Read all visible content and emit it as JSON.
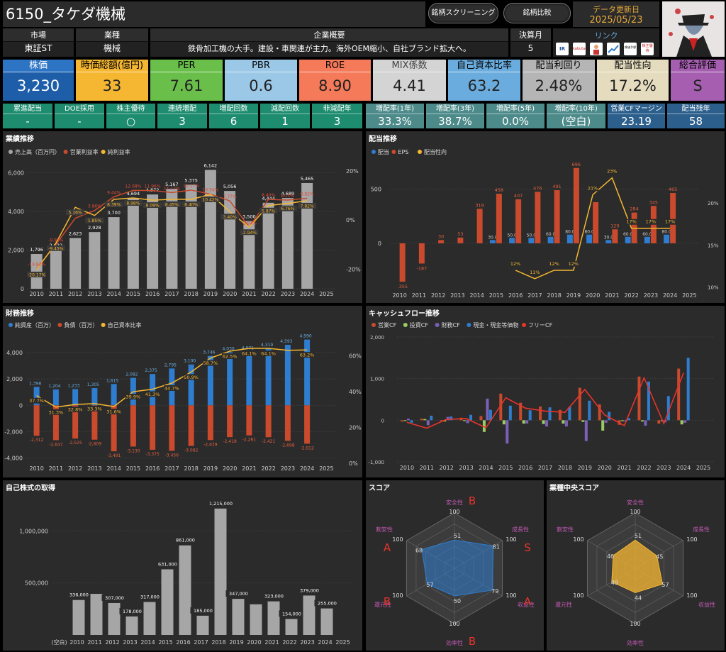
{
  "header": {
    "title": "6150_タケダ機械",
    "btn_screening": "銘柄スクリーニング",
    "btn_compare": "銘柄比較",
    "update_label": "データ更新日",
    "update_date": "2025/05/23"
  },
  "info": {
    "market_h": "市場",
    "market": "東証ST",
    "industry_h": "業種",
    "industry": "機械",
    "summary_h": "企業概要",
    "summary": "鉄骨加工機の大手。建設・車関連が主力。海外OEM縮小、自社ブランド拡大へ。",
    "fiscal_h": "決算月",
    "fiscal": "5",
    "links_h": "リンク",
    "links": [
      "IR BANK",
      "kabutan",
      "",
      "",
      "株価予想",
      "株主優待"
    ]
  },
  "kpis": [
    {
      "label": "株価",
      "value": "3,230",
      "bg": "#1e5ea8",
      "hbg": "#2d74c4",
      "fg": "#fff"
    },
    {
      "label": "時価総額(億円)",
      "value": "33",
      "bg": "#f5b731",
      "hbg": "#f5b731",
      "fg": "#000"
    },
    {
      "label": "PER",
      "value": "7.61",
      "bg": "#6abf4b",
      "hbg": "#6abf4b",
      "fg": "#000"
    },
    {
      "label": "PBR",
      "value": "0.6",
      "bg": "#9cc8e8",
      "hbg": "#9cc8e8",
      "fg": "#000"
    },
    {
      "label": "ROE",
      "value": "8.90",
      "bg": "#f47a5a",
      "hbg": "#f47a5a",
      "fg": "#000"
    },
    {
      "label": "MIX係数",
      "value": "4.41",
      "bg": "#d4d4d4",
      "hbg": "#d4d4d4",
      "fg": "#444"
    },
    {
      "label": "自己資本比率",
      "value": "63.2",
      "bg": "#6aacde",
      "hbg": "#6aacde",
      "fg": "#000"
    },
    {
      "label": "配当利回り",
      "value": "2.48%",
      "bg": "#b5b5b5",
      "hbg": "#b5b5b5",
      "fg": "#000"
    },
    {
      "label": "配当性向",
      "value": "17.2%",
      "bg": "#e5dcbf",
      "hbg": "#e5dcbf",
      "fg": "#000"
    },
    {
      "label": "総合評価",
      "value": "S",
      "bg": "#a65fb0",
      "hbg": "#a65fb0",
      "fg": "#000"
    }
  ],
  "minis": [
    {
      "label": "累進配当",
      "value": "-",
      "bg": "#1e8c6f"
    },
    {
      "label": "DOE採用",
      "value": "-",
      "bg": "#1e8c6f"
    },
    {
      "label": "株主優待",
      "value": "○",
      "bg": "#1e8c6f"
    },
    {
      "label": "連続増配",
      "value": "3",
      "bg": "#1e8c6f"
    },
    {
      "label": "増配回数",
      "value": "6",
      "bg": "#1e8c6f"
    },
    {
      "label": "減配回数",
      "value": "1",
      "bg": "#1e8c6f"
    },
    {
      "label": "非減配年",
      "value": "3",
      "bg": "#1e8c6f"
    },
    {
      "label": "増配率(1年)",
      "value": "33.3%",
      "bg": "#4d8a8a"
    },
    {
      "label": "増配率(3年)",
      "value": "38.7%",
      "bg": "#4d8a8a"
    },
    {
      "label": "増配率(5年)",
      "value": "0.0%",
      "bg": "#4d8a8a"
    },
    {
      "label": "増配率(10年)",
      "value": "(空白)",
      "bg": "#4d8a8a"
    },
    {
      "label": "営業CFマージン",
      "value": "23.19",
      "bg": "#2c5f8c"
    },
    {
      "label": "配当残年",
      "value": "58",
      "bg": "#2c5f8c"
    }
  ],
  "panels": {
    "perf": "業績推移",
    "div": "配当推移",
    "fin": "財務推移",
    "cf": "キャッシュフロー推移",
    "buyback": "自己株式の取得",
    "score": "スコア",
    "median": "業種中央スコア"
  },
  "chart_data": [
    {
      "type": "bar",
      "name": "業績推移",
      "legend": [
        "売上高（百万円）",
        "営業利益率",
        "純利益率"
      ],
      "categories": [
        "2010",
        "2011",
        "2012",
        "2013",
        "2014",
        "2015",
        "2016",
        "2017",
        "2018",
        "2019",
        "2020",
        "2021",
        "2022",
        "2023",
        "2024",
        "2025"
      ],
      "series": [
        {
          "name": "売上高（百万円）",
          "values": [
            1796,
            2022,
            2623,
            2928,
            3700,
            4694,
            4872,
            5167,
            5375,
            6142,
            5056,
            3500,
            4444,
            4689,
            5465,
            null
          ]
        },
        {
          "name": "営業利益率",
          "values": [
            -19.82,
            -9.93,
            0.73,
            3.86,
            9.44,
            12.08,
            11.96,
            11.17,
            12.17,
            10.54,
            7.77,
            -2.94,
            8.4,
            8.1,
            8.82,
            null
          ]
        },
        {
          "name": "純利益率",
          "values": [
            -20.17,
            -9.45,
            5.16,
            1.85,
            8.39,
            8.98,
            8.09,
            8.45,
            8.4,
            10.42,
            3.4,
            -2.94,
            5.87,
            6.76,
            7.82,
            null
          ]
        }
      ],
      "labels_sales": [
        "1,796",
        "2,022",
        "2,623",
        "2,928",
        "3,700",
        "4,694",
        "4,872",
        "5,167",
        "5,375",
        "6,142",
        "5,056",
        "3,500",
        "4,444",
        "4,689",
        "5,465",
        ""
      ],
      "labels_op": [
        "-19.82%",
        "-9.93%",
        "0.73%",
        "3.86%",
        "9.44%",
        "12.08%",
        "11.96%",
        "11.17%",
        "12.17%",
        "10.54%",
        "7.77%",
        "-2.94%",
        "8.40%",
        "8.10%",
        "8.82%",
        ""
      ],
      "labels_net": [
        "-20.17%",
        "-9.45%",
        "5.16%",
        "1.85%",
        "8.39%",
        "8.98%",
        "8.09%",
        "8.45%",
        "8.40%",
        "10.42%",
        "3.40%",
        "-2.94%",
        "5.87%",
        "6.76%",
        "7.82%",
        ""
      ],
      "yticks": [
        "0",
        "2,000",
        "4,000",
        "6,000"
      ],
      "y2ticks": [
        "-20%",
        "0%",
        "20%"
      ],
      "ylim": [
        0,
        6600
      ],
      "y2lim": [
        -28,
        24
      ]
    },
    {
      "type": "bar",
      "name": "配当推移",
      "legend": [
        "配当",
        "EPS",
        "配当性向"
      ],
      "categories": [
        "2010",
        "2011",
        "2012",
        "2013",
        "2014",
        "2015",
        "2016",
        "2017",
        "2018",
        "2019",
        "2020",
        "2021",
        "2022",
        "2023",
        "2024",
        "2025"
      ],
      "series": [
        {
          "name": "配当",
          "values": [
            null,
            null,
            null,
            null,
            null,
            30,
            50,
            50,
            60,
            80,
            80,
            30,
            60,
            60,
            80,
            null
          ]
        },
        {
          "name": "EPS",
          "values": [
            -355,
            -187,
            30,
            53,
            319,
            458,
            407,
            476,
            491,
            696,
            380,
            129,
            284,
            345,
            465,
            null
          ]
        },
        {
          "name": "配当性向",
          "values": [
            null,
            null,
            null,
            null,
            null,
            null,
            12,
            11,
            12,
            12,
            21,
            23,
            17,
            17,
            17,
            null
          ]
        }
      ],
      "labels_div": [
        "",
        "",
        "",
        "",
        "",
        "30.0",
        "50.0",
        "50.0",
        "60.0",
        "80.0",
        "80.0",
        "30.0",
        "60.0",
        "60.0",
        "80.0",
        ""
      ],
      "labels_eps": [
        "-355",
        "-187",
        "30",
        "53",
        "319",
        "458",
        "407",
        "476",
        "491",
        "696",
        "",
        "129",
        "284",
        "345",
        "465",
        ""
      ],
      "labels_payout": [
        "",
        "",
        "",
        "",
        "",
        "",
        "12%",
        "11%",
        "12%",
        "12%",
        "21%",
        "23%",
        "17%",
        "17%",
        "17%",
        ""
      ],
      "yticks": [
        "0",
        "500"
      ],
      "y2ticks": [
        "10%",
        "15%",
        "20%"
      ],
      "ylim": [
        -420,
        760
      ],
      "y2lim": [
        9.8,
        25
      ]
    },
    {
      "type": "bar",
      "name": "財務推移",
      "legend": [
        "純資産（百万）",
        "負債（百万）",
        "自己資本比率"
      ],
      "categories": [
        "2010",
        "2011",
        "2012",
        "2013",
        "2014",
        "2015",
        "2016",
        "2017",
        "2018",
        "2019",
        "2020",
        "2021",
        "2022",
        "2023",
        "2024",
        "2025"
      ],
      "series": [
        {
          "name": "純資産（百万）",
          "values": [
            1398,
            1204,
            1233,
            1305,
            1615,
            2082,
            2375,
            2795,
            3100,
            3746,
            4030,
            4071,
            4319,
            4593,
            4990,
            null
          ]
        },
        {
          "name": "負債（百万）",
          "values": [
            -2312,
            -2647,
            -2525,
            -2609,
            -3491,
            -3130,
            -3375,
            -3456,
            -3082,
            -2639,
            -2418,
            -2281,
            -2421,
            -2698,
            -2912,
            null
          ]
        },
        {
          "name": "自己資本比率",
          "values": [
            37.7,
            31.3,
            32.8,
            33.3,
            31.6,
            39.9,
            41.3,
            44.7,
            50.9,
            58.7,
            62.5,
            64.1,
            64.1,
            63.0,
            63.2,
            null
          ]
        }
      ],
      "labels_eq": [
        "1,398",
        "1,204",
        "1,233",
        "1,305",
        "1,615",
        "2,082",
        "2,375",
        "2,795",
        "3,100",
        "3,746",
        "4,030",
        "4,071",
        "4,319",
        "4,593",
        "4,990",
        ""
      ],
      "labels_li": [
        "-2,312",
        "-2,647",
        "-2,525",
        "-2,609",
        "-3,491",
        "-3,130",
        "-3,375",
        "-3,456",
        "-3,082",
        "-2,639",
        "-2,418",
        "-2,281",
        "-2,421",
        "-2,698",
        "-2,912",
        ""
      ],
      "labels_ratio": [
        "37.7%",
        "31.3%",
        "32.8%",
        "33.3%",
        "31.6%",
        "39.9%",
        "41.3%",
        "44.7%",
        "50.9%",
        "58.7%",
        "62.5%",
        "64.1%",
        "64.1%",
        "",
        "63.2%",
        ""
      ],
      "yticks": [
        "-4,000",
        "-2,000",
        "0",
        "2,000",
        "4,000"
      ],
      "y2ticks": [
        "0%",
        "20%",
        "40%",
        "60%"
      ],
      "ylim": [
        -4400,
        5400
      ],
      "y2lim": [
        0,
        72
      ]
    },
    {
      "type": "bar",
      "name": "キャッシュフロー推移",
      "legend": [
        "営業CF",
        "投資CF",
        "財務CF",
        "現金・現金等価物",
        "フリーCF"
      ],
      "categories": [
        "2010",
        "2011",
        "2012",
        "2013",
        "2014",
        "2015",
        "2016",
        "2017",
        "2018",
        "2019",
        "2020",
        "2021",
        "2022",
        "2023",
        "2024",
        "2025"
      ],
      "series": [
        {
          "name": "営業CF",
          "values": [
            -30,
            40,
            -20,
            60,
            100,
            640,
            420,
            330,
            250,
            780,
            380,
            -110,
            1050,
            -80,
            1240,
            null
          ]
        },
        {
          "name": "投資CF",
          "values": [
            -20,
            30,
            -30,
            -20,
            -280,
            -100,
            -80,
            -90,
            -80,
            -40,
            -250,
            -20,
            -30,
            -20,
            -100,
            null
          ]
        },
        {
          "name": "財務CF",
          "values": [
            40,
            -120,
            80,
            -70,
            520,
            -560,
            -80,
            -150,
            -150,
            -500,
            -60,
            -30,
            -130,
            -50,
            -60,
            null
          ]
        },
        {
          "name": "現金・現金等価物",
          "values": [
            -60,
            110,
            90,
            130,
            250,
            350,
            240,
            310,
            320,
            470,
            200,
            50,
            930,
            580,
            1500,
            null
          ]
        },
        {
          "name": "フリーCF",
          "values": [
            -50,
            -190,
            20,
            40,
            -180,
            540,
            290,
            220,
            190,
            740,
            130,
            -130,
            1020,
            -80,
            1140,
            null
          ]
        }
      ],
      "yticks": [
        "-1,000",
        "0",
        "1,000",
        "2,000"
      ],
      "ylim": [
        -1000,
        2000
      ]
    },
    {
      "type": "bar",
      "name": "自己株式の取得",
      "categories": [
        "(空白)",
        "2010",
        "2011",
        "2012",
        "2013",
        "2014",
        "2015",
        "2016",
        "2017",
        "2018",
        "2019",
        "2020",
        "2021",
        "2022",
        "2023",
        "2024",
        "2025"
      ],
      "values": [
        null,
        336000,
        395000,
        307000,
        178000,
        317000,
        631000,
        861000,
        185000,
        1215000,
        347000,
        295000,
        323000,
        154000,
        379000,
        255000,
        null
      ],
      "labels": [
        "",
        "336,000",
        "",
        "307,000",
        "178,000",
        "317,000",
        "631,000",
        "861,000",
        "185,000",
        "1,215,000",
        "347,000",
        "",
        "323,000",
        "154,000",
        "379,000",
        "255,000",
        ""
      ],
      "yticks": [
        "500,000",
        "1,000,000"
      ],
      "ylim": [
        0,
        1350000
      ]
    },
    {
      "type": "radar",
      "name": "スコア",
      "axes": [
        "安全性",
        "成長性",
        "収益性",
        "効率性",
        "還元性",
        "割安性"
      ],
      "values": [
        51,
        81,
        79,
        50,
        57,
        68
      ],
      "grades": [
        "B",
        "S",
        "A",
        "B",
        "B",
        "A"
      ],
      "max": "100"
    },
    {
      "type": "radar",
      "name": "業種中央スコア",
      "axes": [
        "安全性",
        "成長性",
        "収益性",
        "効率性",
        "還元性",
        "割安性"
      ],
      "values": [
        51,
        45,
        57,
        44,
        49,
        46
      ],
      "max": "100"
    }
  ],
  "colors": {
    "gray_bar": "#a6a6a6",
    "red": "#c94a2c",
    "yellow": "#f5b731",
    "blue": "#2f7dcf",
    "green": "#9acd5f",
    "purple": "#7b5fb8",
    "bright_red": "#e8342c"
  }
}
